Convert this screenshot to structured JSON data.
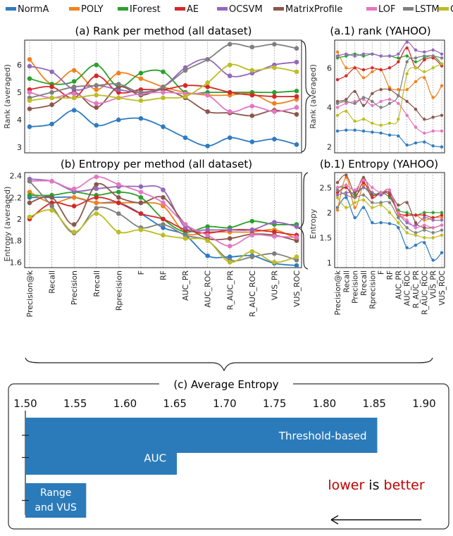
{
  "metrics": [
    "Precision@k",
    "Recall",
    "Precision",
    "Rrecall",
    "Rprecision",
    "F",
    "RF",
    "AUC_PR",
    "AUC_ROC",
    "R_AUC_PR",
    "R_AUC_ROC",
    "VUS_PR",
    "VUS_ROC"
  ],
  "legend": [
    {
      "name": "NormA",
      "color": "#2f7bbf"
    },
    {
      "name": "POLY",
      "color": "#f2811d"
    },
    {
      "name": "IForest",
      "color": "#2ca02c"
    },
    {
      "name": "AE",
      "color": "#d62728"
    },
    {
      "name": "OCSVM",
      "color": "#9467bd"
    },
    {
      "name": "MatrixProfile",
      "color": "#8c564b"
    },
    {
      "name": "LOF",
      "color": "#e377c2"
    },
    {
      "name": "LSTM",
      "color": "#7f7f7f"
    },
    {
      "name": "CNN",
      "color": "#bcbd22"
    }
  ],
  "chart_data": [
    {
      "id": "a",
      "type": "line",
      "title": "(a) Rank per method (all dataset)",
      "ylabel": "Rank (averaged)",
      "ylim": [
        2.8,
        6.9
      ],
      "yticks": [
        3,
        4,
        5,
        6
      ],
      "x_count": 13,
      "series": [
        {
          "name": "NormA",
          "values": [
            3.75,
            3.85,
            4.35,
            3.8,
            4.0,
            4.05,
            3.75,
            3.35,
            3.05,
            3.35,
            3.2,
            3.3,
            3.1
          ]
        },
        {
          "name": "POLY",
          "values": [
            6.2,
            5.3,
            5.8,
            5.1,
            5.7,
            5.5,
            5.2,
            5.0,
            4.9,
            4.9,
            4.95,
            4.6,
            4.75
          ]
        },
        {
          "name": "IForest",
          "values": [
            5.5,
            5.3,
            5.4,
            6.0,
            5.2,
            5.7,
            5.75,
            5.0,
            5.0,
            5.0,
            5.0,
            5.0,
            5.05
          ]
        },
        {
          "name": "AE",
          "values": [
            5.1,
            5.2,
            4.8,
            5.6,
            5.0,
            5.1,
            5.1,
            5.25,
            5.2,
            5.0,
            4.9,
            4.85,
            4.85
          ]
        },
        {
          "name": "OCSVM",
          "values": [
            5.95,
            5.75,
            5.1,
            5.25,
            5.1,
            5.0,
            5.2,
            5.9,
            6.2,
            5.6,
            5.7,
            6.0,
            6.1
          ]
        },
        {
          "name": "MatrixProfile",
          "values": [
            4.4,
            4.55,
            5.0,
            4.45,
            5.2,
            4.9,
            5.1,
            4.8,
            4.3,
            4.25,
            4.15,
            4.35,
            4.2
          ]
        },
        {
          "name": "LOF",
          "values": [
            5.0,
            4.8,
            4.95,
            4.6,
            4.8,
            4.95,
            5.0,
            4.95,
            4.9,
            4.3,
            4.5,
            4.3,
            4.45
          ]
        },
        {
          "name": "LSTM",
          "values": [
            4.8,
            5.0,
            5.2,
            5.25,
            5.3,
            5.0,
            5.2,
            5.8,
            6.2,
            6.75,
            6.65,
            6.75,
            6.6
          ]
        },
        {
          "name": "CNN",
          "values": [
            4.7,
            4.8,
            4.8,
            4.9,
            4.8,
            4.7,
            4.8,
            4.85,
            5.35,
            6.0,
            5.8,
            5.9,
            5.75
          ]
        }
      ]
    },
    {
      "id": "a1",
      "type": "line",
      "title": "(a.1) rank (YAHOO)",
      "ylabel": "Rank (averaged)",
      "ylim": [
        1.7,
        7.4
      ],
      "yticks": [
        2,
        4,
        6
      ],
      "x_count": 13,
      "series": [
        {
          "name": "NormA",
          "values": [
            2.8,
            2.85,
            2.85,
            2.8,
            2.75,
            2.7,
            2.6,
            2.55,
            2.1,
            2.2,
            2.25,
            2.05,
            2.0
          ]
        },
        {
          "name": "POLY",
          "values": [
            6.8,
            6.0,
            6.0,
            5.5,
            5.8,
            5.9,
            5.0,
            4.9,
            4.9,
            5.3,
            5.5,
            4.5,
            5.1
          ]
        },
        {
          "name": "IForest",
          "values": [
            6.5,
            6.6,
            6.7,
            6.6,
            6.7,
            6.6,
            6.6,
            6.5,
            6.6,
            6.3,
            6.5,
            6.6,
            6.2
          ]
        },
        {
          "name": "AE",
          "values": [
            5.4,
            5.6,
            6.0,
            5.9,
            6.0,
            5.9,
            6.0,
            6.3,
            7.0,
            6.0,
            6.4,
            6.5,
            6.1
          ]
        },
        {
          "name": "OCSVM",
          "values": [
            6.6,
            6.7,
            6.6,
            6.7,
            6.7,
            6.6,
            6.6,
            6.7,
            7.3,
            6.9,
            6.8,
            6.9,
            6.7
          ]
        },
        {
          "name": "MatrixProfile",
          "values": [
            4.3,
            4.4,
            4.8,
            4.1,
            4.7,
            4.9,
            4.9,
            4.6,
            4.3,
            3.9,
            3.4,
            3.5,
            3.6
          ]
        },
        {
          "name": "LOF",
          "values": [
            4.0,
            4.2,
            4.3,
            4.4,
            4.1,
            4.3,
            4.4,
            4.2,
            3.6,
            3.0,
            2.7,
            2.8,
            2.8
          ]
        },
        {
          "name": "LSTM",
          "values": [
            4.2,
            4.3,
            4.2,
            4.5,
            4.3,
            4.0,
            4.2,
            4.6,
            6.3,
            6.5,
            6.6,
            6.6,
            6.5
          ]
        },
        {
          "name": "CNN",
          "values": [
            3.6,
            3.8,
            3.3,
            3.4,
            3.2,
            3.1,
            3.2,
            3.4,
            5.7,
            6.0,
            5.8,
            6.0,
            6.2
          ]
        }
      ]
    },
    {
      "id": "b",
      "type": "line",
      "title": "(b) Entropy per method (all dataset)",
      "ylabel": "Entropy (averaged)",
      "ylim": [
        1.55,
        2.43
      ],
      "yticks": [
        1.6,
        1.8,
        2.0,
        2.2,
        2.4
      ],
      "x_count": 13,
      "series": [
        {
          "name": "NormA",
          "values": [
            2.2,
            2.2,
            2.2,
            2.15,
            2.15,
            2.05,
            1.92,
            1.85,
            1.66,
            1.65,
            1.66,
            1.59,
            1.57
          ]
        },
        {
          "name": "POLY",
          "values": [
            2.25,
            2.15,
            2.2,
            2.15,
            2.15,
            2.15,
            2.12,
            1.87,
            1.88,
            1.88,
            1.88,
            1.9,
            1.82
          ]
        },
        {
          "name": "IForest",
          "values": [
            2.22,
            2.22,
            2.25,
            2.22,
            2.25,
            2.2,
            2.0,
            1.88,
            1.93,
            1.92,
            1.98,
            1.95,
            1.95
          ]
        },
        {
          "name": "AE",
          "values": [
            2.0,
            2.15,
            2.12,
            2.2,
            2.15,
            2.05,
            2.0,
            1.9,
            1.87,
            1.9,
            1.9,
            1.88,
            1.85
          ]
        },
        {
          "name": "OCSVM",
          "values": [
            2.37,
            2.35,
            2.26,
            2.28,
            2.3,
            2.3,
            2.27,
            1.92,
            1.9,
            1.9,
            1.9,
            1.97,
            1.93
          ]
        },
        {
          "name": "MatrixProfile",
          "values": [
            2.15,
            2.2,
            1.95,
            2.32,
            2.2,
            2.15,
            2.2,
            1.95,
            1.82,
            1.82,
            1.86,
            1.85,
            1.8
          ]
        },
        {
          "name": "LOF",
          "values": [
            2.35,
            2.35,
            2.28,
            2.39,
            2.32,
            2.25,
            2.15,
            1.95,
            1.85,
            1.75,
            1.85,
            1.84,
            1.83
          ]
        },
        {
          "name": "LSTM",
          "values": [
            2.35,
            2.12,
            1.87,
            2.1,
            2.05,
            1.92,
            1.95,
            1.85,
            1.8,
            1.62,
            1.65,
            1.68,
            1.62
          ]
        },
        {
          "name": "CNN",
          "values": [
            2.02,
            2.08,
            1.88,
            2.05,
            1.88,
            1.9,
            1.85,
            1.82,
            1.8,
            1.6,
            1.7,
            1.6,
            1.65
          ]
        }
      ]
    },
    {
      "id": "b1",
      "type": "line",
      "title": "(b.1) Entropy (YAHOO)",
      "ylabel": "Entropy",
      "ylim": [
        0.9,
        2.8
      ],
      "yticks": [
        1.0,
        1.5,
        2.0,
        2.5
      ],
      "x_count": 13,
      "series": [
        {
          "name": "NormA",
          "values": [
            2.1,
            2.3,
            1.9,
            2.1,
            1.8,
            1.8,
            1.78,
            1.7,
            1.3,
            1.35,
            1.4,
            1.05,
            1.2
          ]
        },
        {
          "name": "POLY",
          "values": [
            2.05,
            2.7,
            2.1,
            2.55,
            2.4,
            2.35,
            2.45,
            1.95,
            1.95,
            1.95,
            1.85,
            1.9,
            1.9
          ]
        },
        {
          "name": "IForest",
          "values": [
            2.5,
            2.5,
            2.35,
            2.5,
            2.35,
            2.4,
            2.3,
            2.05,
            2.0,
            1.95,
            2.0,
            2.0,
            2.0
          ]
        },
        {
          "name": "AE",
          "values": [
            2.4,
            2.5,
            2.3,
            2.6,
            2.3,
            2.4,
            2.35,
            2.0,
            1.95,
            1.95,
            1.95,
            1.9,
            1.95
          ]
        },
        {
          "name": "OCSVM",
          "values": [
            2.35,
            2.4,
            2.4,
            2.5,
            2.4,
            2.35,
            2.4,
            2.0,
            1.8,
            1.75,
            1.9,
            1.85,
            1.85
          ]
        },
        {
          "name": "MatrixProfile",
          "values": [
            2.6,
            2.75,
            2.4,
            2.7,
            2.35,
            2.4,
            2.4,
            2.15,
            2.2,
            1.8,
            1.7,
            1.7,
            1.75
          ]
        },
        {
          "name": "LOF",
          "values": [
            2.5,
            2.55,
            2.45,
            2.65,
            2.5,
            2.4,
            2.45,
            2.0,
            1.85,
            1.7,
            1.75,
            1.7,
            1.75
          ]
        },
        {
          "name": "LSTM",
          "values": [
            2.45,
            2.35,
            2.3,
            2.35,
            2.2,
            2.2,
            2.2,
            1.9,
            1.7,
            1.6,
            1.65,
            1.6,
            1.65
          ]
        },
        {
          "name": "CNN",
          "values": [
            2.3,
            2.1,
            2.2,
            2.25,
            2.1,
            2.15,
            2.0,
            1.8,
            1.6,
            1.55,
            1.5,
            1.5,
            1.55
          ]
        }
      ]
    },
    {
      "id": "c",
      "type": "bar",
      "orientation": "horizontal",
      "title": "(c) Average Entropy",
      "xlim": [
        1.5,
        1.9
      ],
      "xticks": [
        "1.50",
        "1.55",
        "1.60",
        "1.65",
        "1.70",
        "1.75",
        "1.80",
        "1.85",
        "1.90"
      ],
      "categories": [
        "Threshold-based",
        "AUC",
        "Range and VUS"
      ],
      "bar_labels": [
        "Threshold-based",
        "AUC",
        "Range\nand VUS"
      ],
      "values": [
        1.853,
        1.652,
        1.561
      ],
      "color": "#2b7bba",
      "annotation": {
        "part1": "lower",
        "part2": " is ",
        "part3": "better",
        "highlight_color": "#c00000"
      }
    }
  ]
}
